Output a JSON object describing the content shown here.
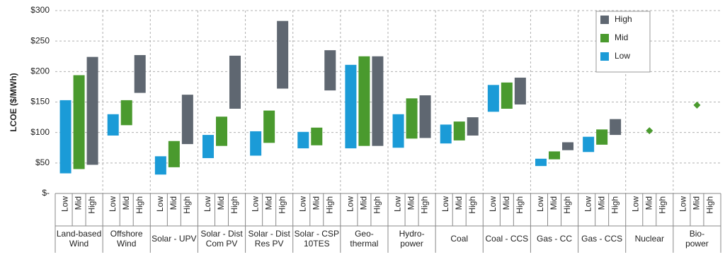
{
  "chart_data": {
    "type": "floating-bar",
    "y_label": "LCOE ($/MWh)",
    "categories": [
      [
        "Land-based",
        "Wind"
      ],
      [
        "Offshore",
        "Wind"
      ],
      [
        "Solar - UPV"
      ],
      [
        "Solar - Dist",
        "Com PV"
      ],
      [
        "Solar - Dist",
        "Res PV"
      ],
      [
        "Solar - CSP",
        "10TES"
      ],
      [
        "Geo-",
        "thermal"
      ],
      [
        "Hydro-",
        "power"
      ],
      [
        "Coal"
      ],
      [
        "Coal - CCS"
      ],
      [
        "Gas - CC"
      ],
      [
        "Gas - CCS"
      ],
      [
        "Nuclear"
      ],
      [
        "Bio-",
        "power"
      ]
    ],
    "series": [
      {
        "name": "Low",
        "color": "#1b9bd7",
        "values": [
          [
            33,
            153
          ],
          [
            95,
            130
          ],
          [
            31,
            61
          ],
          [
            58,
            96
          ],
          [
            62,
            102
          ],
          [
            74,
            101
          ],
          [
            74,
            211
          ],
          [
            75,
            130
          ],
          [
            82,
            113
          ],
          [
            134,
            178
          ],
          [
            45,
            57
          ],
          [
            68,
            93
          ],
          null,
          null
        ]
      },
      {
        "name": "Mid",
        "color": "#4a9a2e",
        "values": [
          [
            40,
            194
          ],
          [
            112,
            153
          ],
          [
            43,
            86
          ],
          [
            78,
            126
          ],
          [
            83,
            136
          ],
          [
            79,
            108
          ],
          [
            78,
            225
          ],
          [
            90,
            156
          ],
          [
            87,
            118
          ],
          [
            139,
            182
          ],
          [
            56,
            69
          ],
          [
            80,
            105
          ],
          [
            103,
            103
          ],
          [
            145,
            145
          ]
        ]
      },
      {
        "name": "High",
        "color": "#5f6771",
        "values": [
          [
            47,
            224
          ],
          [
            165,
            227
          ],
          [
            81,
            162
          ],
          [
            139,
            226
          ],
          [
            172,
            283
          ],
          [
            169,
            235
          ],
          [
            78,
            225
          ],
          [
            91,
            161
          ],
          [
            95,
            125
          ],
          [
            146,
            190
          ],
          [
            71,
            84
          ],
          [
            96,
            122
          ],
          null,
          null
        ]
      }
    ],
    "ylim": [
      0,
      300
    ],
    "yticks": [
      {
        "value": 0,
        "label": "$-"
      },
      {
        "value": 50,
        "label": "$50"
      },
      {
        "value": 100,
        "label": "$100"
      },
      {
        "value": 150,
        "label": "$150"
      },
      {
        "value": 200,
        "label": "$200"
      },
      {
        "value": 250,
        "label": "$250"
      },
      {
        "value": 300,
        "label": "$300"
      }
    ],
    "grid": true,
    "legend": "top-right"
  }
}
